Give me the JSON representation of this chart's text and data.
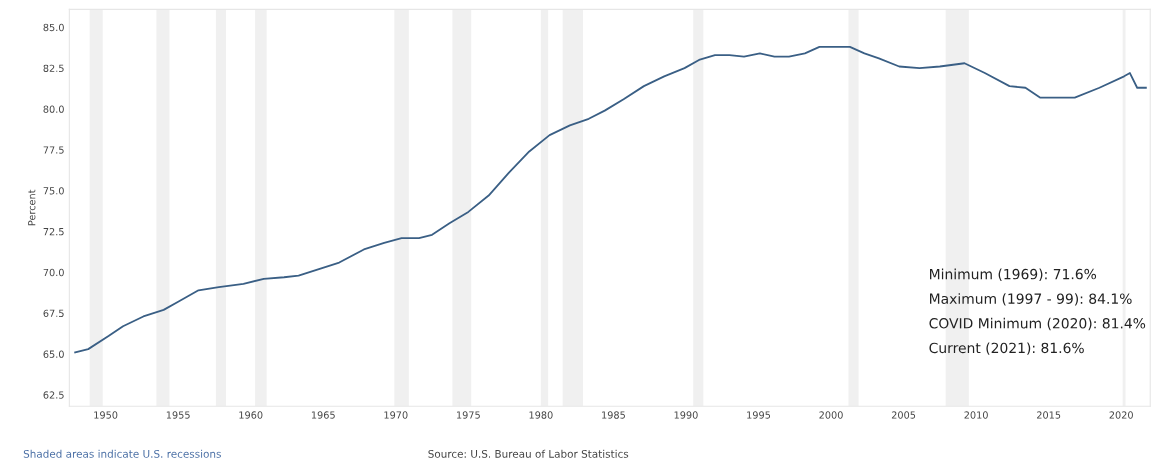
{
  "chart_data": {
    "type": "line",
    "ylabel": "Percent",
    "x": [
      1947.9,
      1948.8,
      1950.2,
      1951.2,
      1952.6,
      1954.0,
      1955.0,
      1956.4,
      1957.8,
      1959.5,
      1960.9,
      1962.3,
      1963.3,
      1964.7,
      1966.1,
      1967.8,
      1969.2,
      1970.4,
      1971.6,
      1972.5,
      1973.7,
      1975.0,
      1976.4,
      1977.8,
      1979.2,
      1980.6,
      1982.0,
      1983.3,
      1984.4,
      1985.7,
      1987.1,
      1988.5,
      1989.9,
      1990.9,
      1992.0,
      1993.0,
      1994.0,
      1995.1,
      1996.1,
      1997.1,
      1998.2,
      1999.2,
      2000.2,
      2001.3,
      2002.3,
      2003.3,
      2004.7,
      2006.1,
      2007.5,
      2009.2,
      2010.6,
      2012.3,
      2013.4,
      2014.4,
      2015.8,
      2016.8,
      2018.5,
      2020.2,
      2020.6,
      2021.1,
      2021.7
    ],
    "series": [
      {
        "color": "#3a5f85",
        "values": [
          65.1,
          65.3,
          66.1,
          66.7,
          67.3,
          67.7,
          68.2,
          68.9,
          69.1,
          69.3,
          69.6,
          69.7,
          69.8,
          70.2,
          70.6,
          71.4,
          71.8,
          72.1,
          72.1,
          72.3,
          73.0,
          73.7,
          74.7,
          76.1,
          77.4,
          78.4,
          79.0,
          79.4,
          79.9,
          80.6,
          81.4,
          82.0,
          82.5,
          83.0,
          83.3,
          83.3,
          83.2,
          83.4,
          83.2,
          83.2,
          83.4,
          83.8,
          83.8,
          83.8,
          83.4,
          83.1,
          82.6,
          82.5,
          82.6,
          82.8,
          82.2,
          81.4,
          81.3,
          80.7,
          80.7,
          80.7,
          81.3,
          82.0,
          82.2,
          81.3,
          81.3
        ]
      }
    ],
    "xlim": [
      1947.5,
      2022.0
    ],
    "xticks": [
      1950,
      1955,
      1960,
      1965,
      1970,
      1975,
      1980,
      1985,
      1990,
      1995,
      2000,
      2005,
      2010,
      2015,
      2020
    ],
    "ylim": [
      61.8,
      86.1
    ],
    "yticks": [
      {
        "value": 62.5,
        "label": "62.5"
      },
      {
        "value": 65,
        "label": "65.0"
      },
      {
        "value": 67.5,
        "label": "67.5"
      },
      {
        "value": 70,
        "label": "70.0"
      },
      {
        "value": 72.5,
        "label": "72.5"
      },
      {
        "value": 75,
        "label": "75.0"
      },
      {
        "value": 77.5,
        "label": "77.5"
      },
      {
        "value": 80,
        "label": "80.0"
      },
      {
        "value": 82.5,
        "label": "82.5"
      },
      {
        "value": 85,
        "label": "85.0"
      }
    ],
    "bands": [
      {
        "axis": "x",
        "from": 1948.9,
        "to": 1949.8,
        "color": "#f0f0f0"
      },
      {
        "axis": "x",
        "from": 1953.5,
        "to": 1954.4,
        "color": "#f0f0f0"
      },
      {
        "axis": "x",
        "from": 1957.6,
        "to": 1958.3,
        "color": "#f0f0f0"
      },
      {
        "axis": "x",
        "from": 1960.3,
        "to": 1961.1,
        "color": "#f0f0f0"
      },
      {
        "axis": "x",
        "from": 1969.9,
        "to": 1970.9,
        "color": "#f0f0f0"
      },
      {
        "axis": "x",
        "from": 1973.9,
        "to": 1975.2,
        "color": "#f0f0f0"
      },
      {
        "axis": "x",
        "from": 1980.0,
        "to": 1980.5,
        "color": "#f0f0f0"
      },
      {
        "axis": "x",
        "from": 1981.5,
        "to": 1982.9,
        "color": "#f0f0f0"
      },
      {
        "axis": "x",
        "from": 1990.5,
        "to": 1991.2,
        "color": "#f0f0f0"
      },
      {
        "axis": "x",
        "from": 2001.2,
        "to": 2001.9,
        "color": "#f0f0f0"
      },
      {
        "axis": "x",
        "from": 2007.9,
        "to": 2009.5,
        "color": "#f0f0f0"
      },
      {
        "axis": "x",
        "from": 2020.1,
        "to": 2020.3,
        "color": "#f0f0f0"
      }
    ],
    "annotations": [
      "Minimum (1969): 71.6%",
      "Maximum (1997 - 99): 84.1%",
      "COVID Minimum (2020): 81.4%",
      "Current (2021): 81.6%",
      "Shaded areas indicate U.S. recessions",
      "Source: U.S. Bureau of Labor Statistics"
    ]
  }
}
